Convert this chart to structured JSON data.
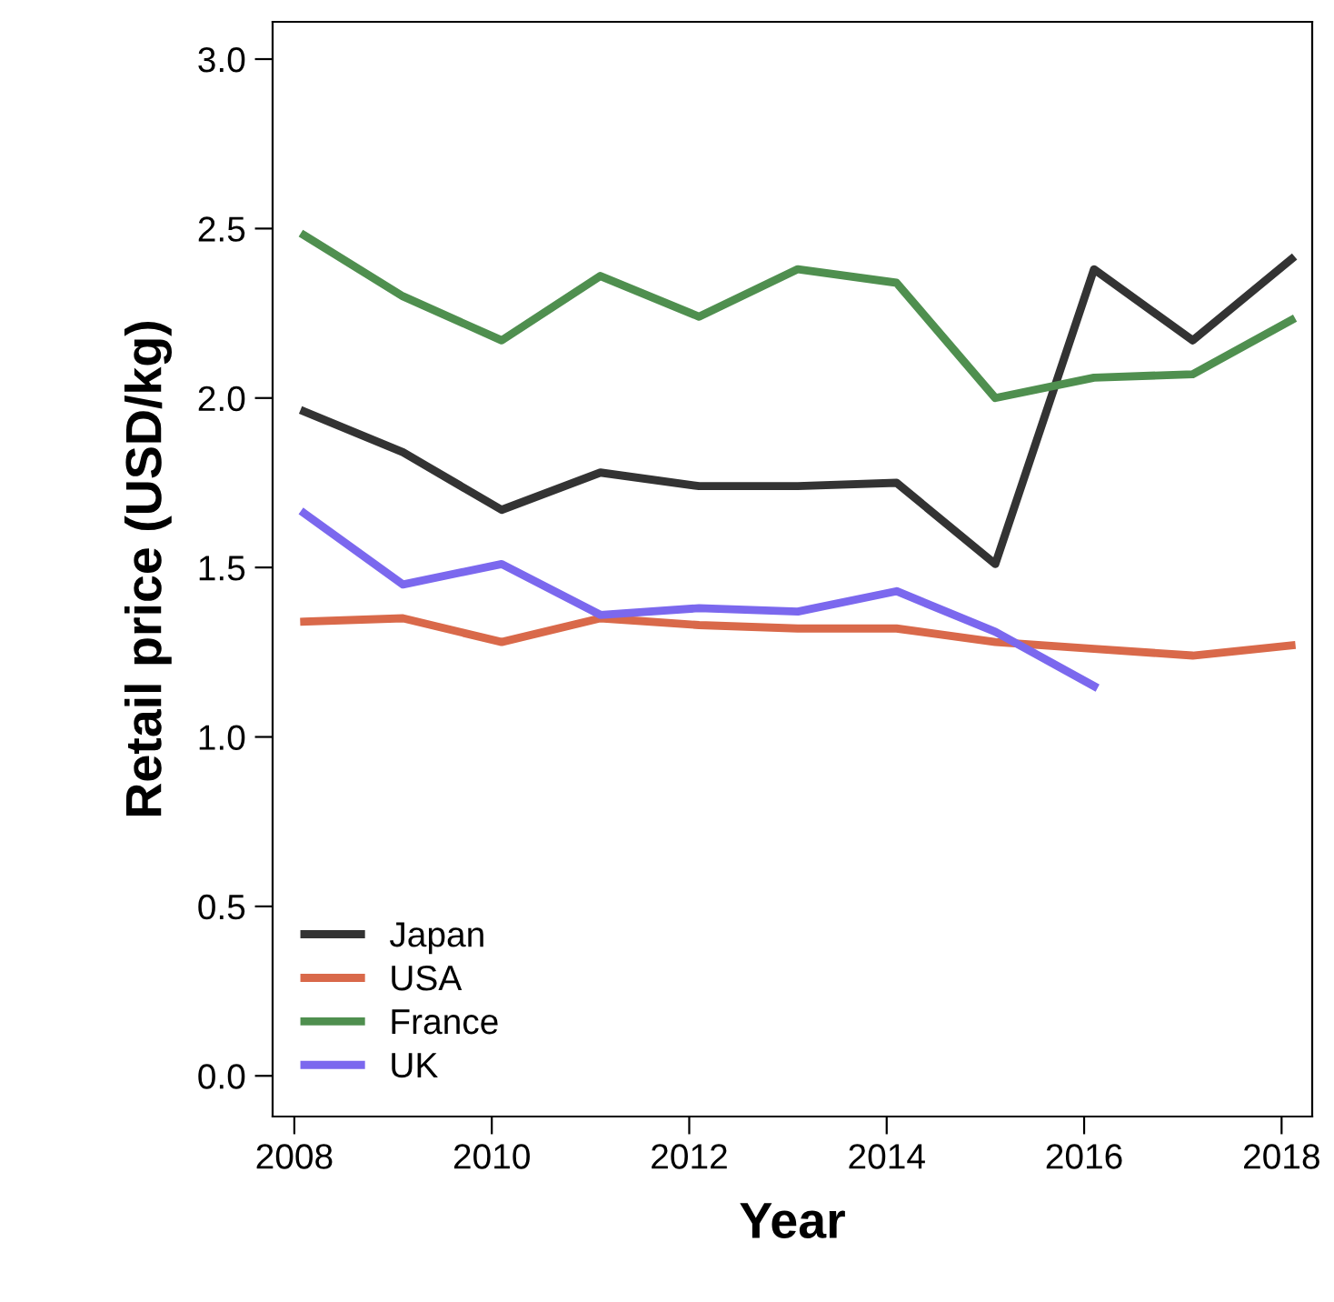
{
  "chart_data": {
    "type": "line",
    "xlabel": "Year",
    "ylabel": "Retail price (USD/kg)",
    "xlim": [
      2007.78,
      2018.31
    ],
    "ylim": [
      -0.12,
      3.11
    ],
    "xticks": [
      2008,
      2010,
      2012,
      2014,
      2016,
      2018
    ],
    "yticks": [
      {
        "value": 0,
        "label": "0.0"
      },
      {
        "value": 0.5,
        "label": "0.5"
      },
      {
        "value": 1,
        "label": "1.0"
      },
      {
        "value": 1.5,
        "label": "1.5"
      },
      {
        "value": 2,
        "label": "2.0"
      },
      {
        "value": 2.5,
        "label": "2.5"
      },
      {
        "value": 3,
        "label": "3.0"
      }
    ],
    "grid": false,
    "legend": "bottom left",
    "marker": "none",
    "line_style": "solid",
    "x": [
      2008.1,
      2009.1,
      2010.1,
      2011.1,
      2012.1,
      2013.1,
      2014.1,
      2015.1,
      2016.1,
      2017.1,
      2018.1
    ],
    "series": [
      {
        "name": "Japan",
        "color": "#333333",
        "values": [
          1.96,
          1.84,
          1.67,
          1.78,
          1.74,
          1.74,
          1.75,
          1.51,
          2.38,
          2.17,
          2.41
        ]
      },
      {
        "name": "USA",
        "color": "#d9694a",
        "values": [
          1.34,
          1.35,
          1.28,
          1.35,
          1.33,
          1.32,
          1.32,
          1.28,
          1.26,
          1.24,
          1.27
        ]
      },
      {
        "name": "France",
        "color": "#4f8f4f",
        "values": [
          2.48,
          2.3,
          2.17,
          2.36,
          2.24,
          2.38,
          2.34,
          2.0,
          2.06,
          2.07,
          2.23
        ]
      },
      {
        "name": "UK",
        "color": "#7b68ee",
        "values": [
          1.66,
          1.45,
          1.51,
          1.36,
          1.38,
          1.37,
          1.43,
          1.31,
          1.15,
          null,
          null
        ]
      }
    ]
  }
}
